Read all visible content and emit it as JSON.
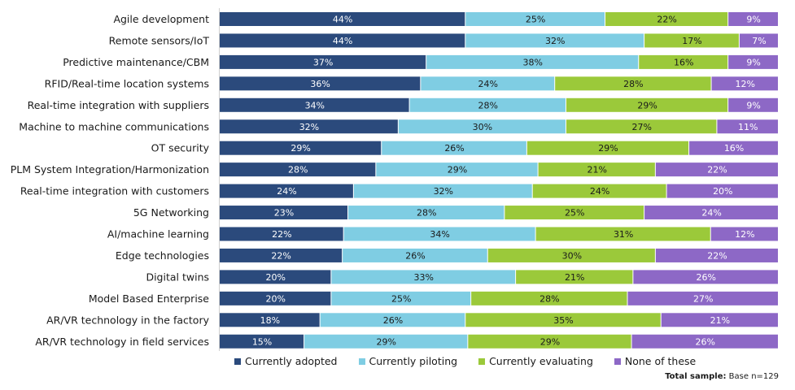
{
  "chart_data": {
    "type": "bar",
    "orientation": "horizontal",
    "stacked": true,
    "title": "",
    "xlabel": "",
    "ylabel": "",
    "xlim": [
      0,
      100
    ],
    "grid": false,
    "legend_position": "bottom",
    "categories": [
      "Agile development",
      "Remote sensors/IoT",
      "Predictive maintenance/CBM",
      "RFID/Real-time location systems",
      "Real-time integration with suppliers",
      "Machine to machine communications",
      "OT security",
      "PLM System Integration/Harmonization",
      "Real-time integration with customers",
      "5G Networking",
      "AI/machine learning",
      "Edge technologies",
      "Digital twins",
      "Model Based Enterprise",
      "AR/VR technology in the factory",
      "AR/VR technology in field services"
    ],
    "series": [
      {
        "name": "Currently adopted",
        "color": "#2b4a7c",
        "label_color": "#ffffff",
        "values": [
          44,
          44,
          37,
          36,
          34,
          32,
          29,
          28,
          24,
          23,
          22,
          22,
          20,
          20,
          18,
          15
        ]
      },
      {
        "name": "Currently piloting",
        "color": "#7fcde3",
        "label_color": "#1a1a1a",
        "values": [
          25,
          32,
          38,
          24,
          28,
          30,
          26,
          29,
          32,
          28,
          34,
          26,
          33,
          25,
          26,
          29
        ]
      },
      {
        "name": "Currently evaluating",
        "color": "#9bc93a",
        "label_color": "#1a1a1a",
        "values": [
          22,
          17,
          16,
          28,
          29,
          27,
          29,
          21,
          24,
          25,
          31,
          30,
          21,
          28,
          35,
          29
        ]
      },
      {
        "name": "None of these",
        "color": "#8d68c6",
        "label_color": "#ffffff",
        "values": [
          9,
          7,
          9,
          12,
          9,
          11,
          16,
          22,
          20,
          24,
          12,
          22,
          26,
          27,
          21,
          26
        ]
      }
    ],
    "value_suffix": "%"
  },
  "legend": {
    "items": [
      {
        "label": "Currently adopted",
        "color": "#2b4a7c"
      },
      {
        "label": "Currently piloting",
        "color": "#7fcde3"
      },
      {
        "label": "Currently evaluating",
        "color": "#9bc93a"
      },
      {
        "label": "None of these",
        "color": "#8d68c6"
      }
    ]
  },
  "footnote": {
    "bold": "Total sample:",
    "text": " Base n=129"
  }
}
